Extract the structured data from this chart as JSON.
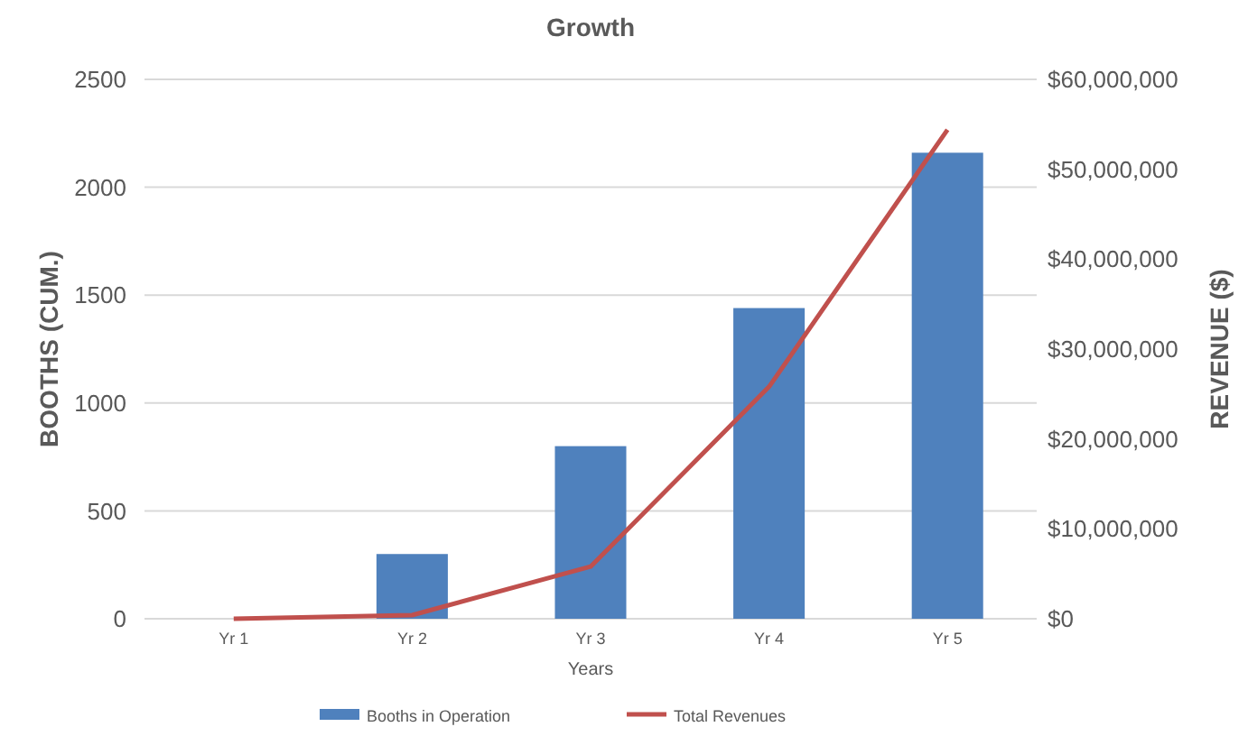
{
  "chart_data": {
    "type": "bar",
    "title": "Growth",
    "xlabel": "Years",
    "ylabel": "BOOTHS (CUM.)",
    "y2label": "REVENUE ($)",
    "categories": [
      "Yr 1",
      "Yr 2",
      "Yr 3",
      "Yr 4",
      "Yr 5"
    ],
    "series": [
      {
        "name": "Booths in Operation",
        "color": "#4f81bd",
        "values": [
          0,
          300,
          800,
          1440,
          2160
        ]
      },
      {
        "name": "Total Revenues",
        "type": "line",
        "axis": "y2",
        "color": "#c0504d",
        "values": [
          0,
          400000,
          5800000,
          25800000,
          54400000
        ]
      }
    ],
    "ylim": [
      0,
      2500
    ],
    "yticks": [
      0,
      500,
      1000,
      1500,
      2000,
      2500
    ],
    "y2lim": [
      0,
      60000000
    ],
    "y2ticks": [
      {
        "value": 0,
        "label": "$0"
      },
      {
        "value": 10000000,
        "label": "$10,000,000"
      },
      {
        "value": 20000000,
        "label": "$20,000,000"
      },
      {
        "value": 30000000,
        "label": "$30,000,000"
      },
      {
        "value": 40000000,
        "label": "$40,000,000"
      },
      {
        "value": 50000000,
        "label": "$50,000,000"
      },
      {
        "value": 60000000,
        "label": "$60,000,000"
      }
    ],
    "grid": "y",
    "legend": "bottom",
    "marker": "none",
    "line_style": "solid"
  }
}
